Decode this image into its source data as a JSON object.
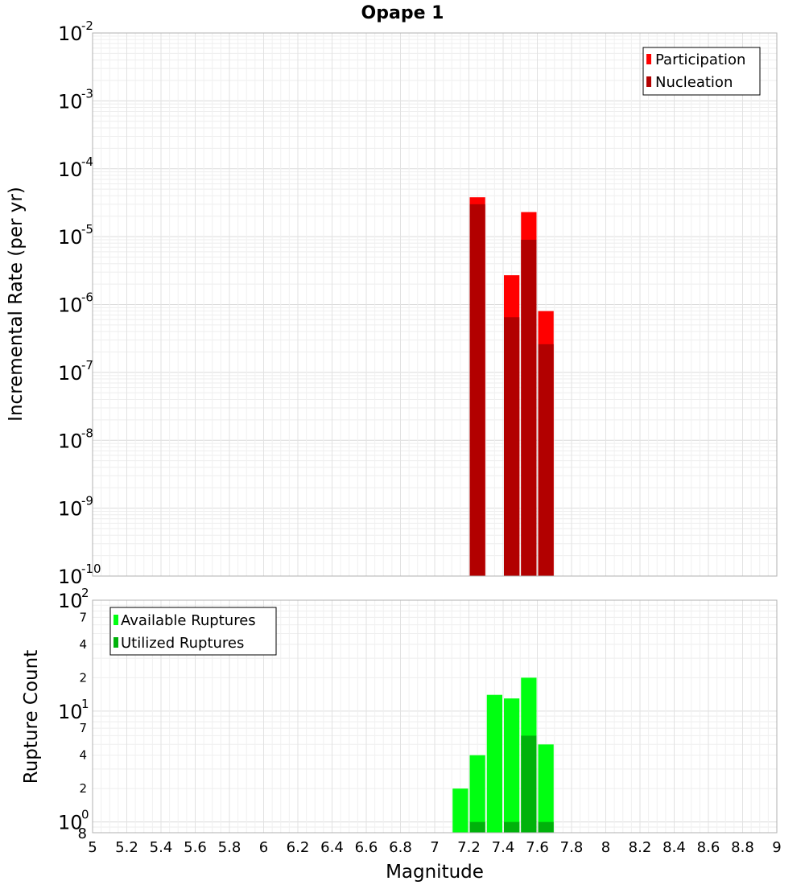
{
  "chart_data": [
    {
      "type": "bar",
      "title": "Opape 1",
      "ylabel": "Incremental Rate (per yr)",
      "xlabel": "",
      "y_scale": "log",
      "ylim_exp": [
        -10,
        -2
      ],
      "xlim": [
        5,
        9
      ],
      "bar_width": 0.1,
      "grid": true,
      "legend_position": "top-right",
      "series": [
        {
          "name": "Participation",
          "color": "#ff0000",
          "points": [
            {
              "x": 7.25,
              "y": 3.8e-05
            },
            {
              "x": 7.45,
              "y": 2.7e-06
            },
            {
              "x": 7.55,
              "y": 2.3e-05
            },
            {
              "x": 7.65,
              "y": 8e-07
            }
          ]
        },
        {
          "name": "Nucleation",
          "color": "#b20000",
          "points": [
            {
              "x": 7.25,
              "y": 3e-05
            },
            {
              "x": 7.45,
              "y": 6.5e-07
            },
            {
              "x": 7.55,
              "y": 9e-06
            },
            {
              "x": 7.65,
              "y": 2.6e-07
            }
          ]
        }
      ]
    },
    {
      "type": "bar",
      "title": "",
      "ylabel": "Rupture Count",
      "xlabel": "Magnitude",
      "y_scale": "log",
      "ylim": [
        0.8,
        100
      ],
      "xlim": [
        5,
        9
      ],
      "bar_width": 0.1,
      "grid": true,
      "legend_position": "top-left",
      "x_ticks": [
        "5",
        "5.2",
        "5.4",
        "5.6",
        "5.8",
        "6",
        "6.2",
        "6.4",
        "6.6",
        "6.8",
        "7",
        "7.2",
        "7.4",
        "7.6",
        "7.8",
        "8",
        "8.2",
        "8.4",
        "8.6",
        "8.8",
        "9"
      ],
      "y_minor_tick_labels": [
        "2",
        "4",
        "7"
      ],
      "y_bottom_label": "8",
      "series": [
        {
          "name": "Available Ruptures",
          "color": "#00ff11",
          "points": [
            {
              "x": 7.15,
              "y": 2
            },
            {
              "x": 7.25,
              "y": 4
            },
            {
              "x": 7.35,
              "y": 14
            },
            {
              "x": 7.45,
              "y": 13
            },
            {
              "x": 7.55,
              "y": 20
            },
            {
              "x": 7.65,
              "y": 5
            }
          ]
        },
        {
          "name": "Utilized Ruptures",
          "color": "#00b20b",
          "points": [
            {
              "x": 7.25,
              "y": 1
            },
            {
              "x": 7.45,
              "y": 1
            },
            {
              "x": 7.55,
              "y": 6
            },
            {
              "x": 7.65,
              "y": 1
            }
          ]
        }
      ]
    }
  ]
}
